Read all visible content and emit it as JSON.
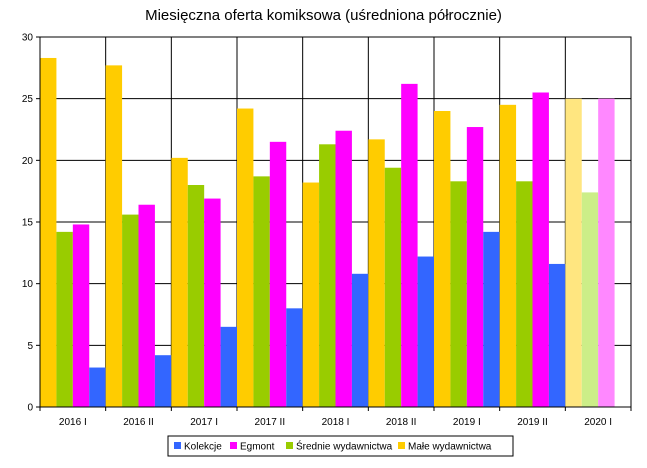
{
  "chart_data": {
    "type": "bar",
    "title": "Miesięczna oferta komiksowa (uśredniona półrocznie)",
    "categories": [
      "2016 I",
      "2016 II",
      "2017 I",
      "2017 II",
      "2018 I",
      "2018 II",
      "2019 I",
      "2019 II",
      "2020 I"
    ],
    "series": [
      {
        "name": "Małe wydawnictwa",
        "color": "#ffcc00",
        "values": [
          28.3,
          27.7,
          20.2,
          24.2,
          18.2,
          21.7,
          24.0,
          24.5,
          25.0
        ]
      },
      {
        "name": "Średnie wydawnictwa",
        "color": "#99cc00",
        "values": [
          14.2,
          15.6,
          18.0,
          18.7,
          21.3,
          19.4,
          18.3,
          18.3,
          17.4
        ]
      },
      {
        "name": "Egmont",
        "color": "#ff00ff",
        "values": [
          14.8,
          16.4,
          16.9,
          21.5,
          22.4,
          26.2,
          22.7,
          25.5,
          25.0
        ]
      },
      {
        "name": "Kolekcje",
        "color": "#3366ff",
        "values": [
          3.2,
          4.2,
          6.5,
          8.0,
          10.8,
          12.2,
          14.2,
          11.6,
          null
        ]
      }
    ],
    "faded_category": "2020 I",
    "faded_colors": {
      "Małe wydawnictwa": "#ffe680",
      "Średnie wydawnictwa": "#ccee88",
      "Egmont": "#ff88ff"
    },
    "legend_order": [
      "Kolekcje",
      "Egmont",
      "Średnie wydawnictwa",
      "Małe wydawnictwa"
    ],
    "legend_position": "bottom",
    "ylim": [
      0,
      30
    ],
    "yticks": [
      0,
      5,
      10,
      15,
      20,
      25,
      30
    ],
    "grid": true,
    "xlabel": "",
    "ylabel": ""
  }
}
